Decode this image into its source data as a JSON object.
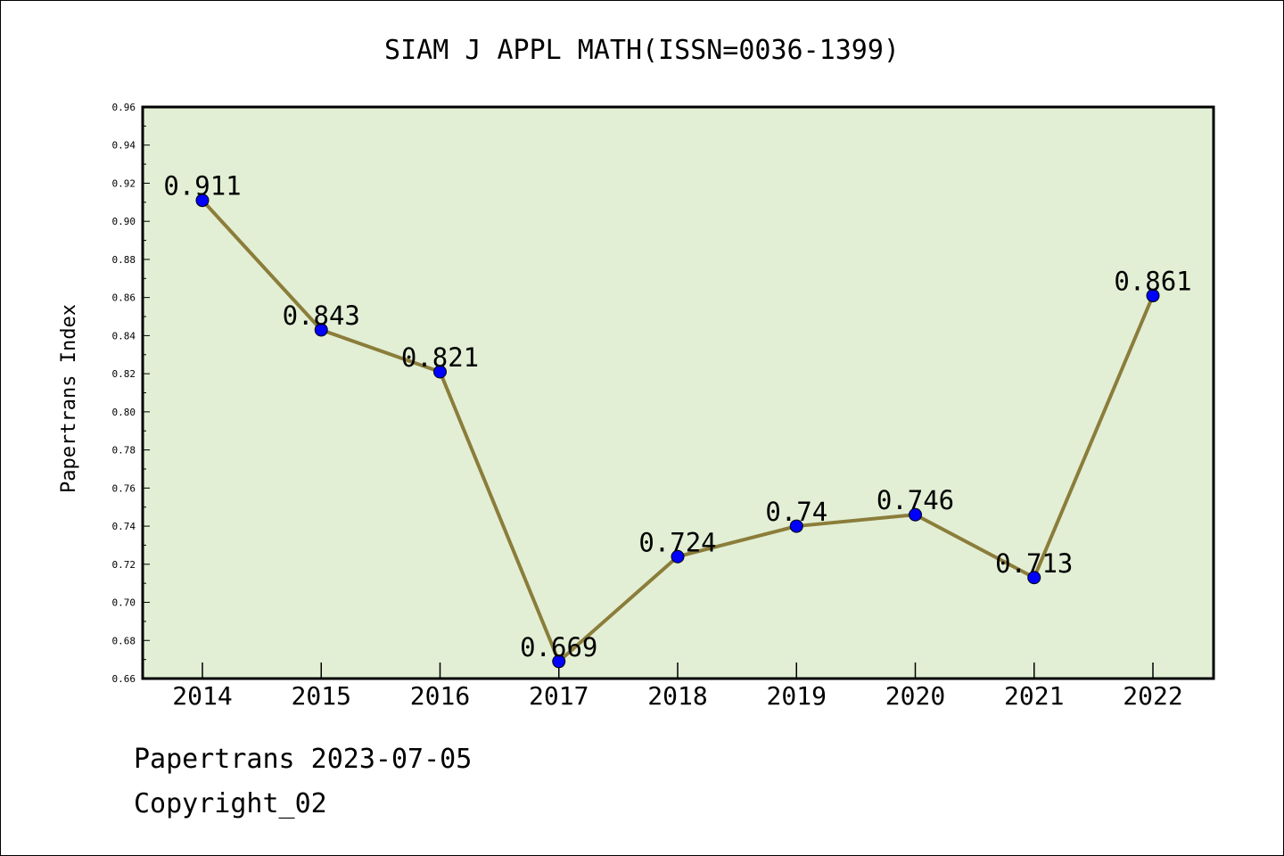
{
  "chart_data": {
    "type": "line",
    "title": "SIAM J APPL MATH(ISSN=0036-1399)",
    "xlabel": "",
    "ylabel": "Papertrans Index",
    "categories": [
      "2014",
      "2015",
      "2016",
      "2017",
      "2018",
      "2019",
      "2020",
      "2021",
      "2022"
    ],
    "values": [
      0.911,
      0.843,
      0.821,
      0.669,
      0.724,
      0.74,
      0.746,
      0.713,
      0.861
    ],
    "value_labels": [
      "0.911",
      "0.843",
      "0.821",
      "0.669",
      "0.724",
      "0.74",
      "0.746",
      "0.713",
      "0.861"
    ],
    "ylim": [
      0.66,
      0.96
    ],
    "yticks": [
      0.66,
      0.68,
      0.7,
      0.72,
      0.74,
      0.76,
      0.78,
      0.8,
      0.82,
      0.84,
      0.86,
      0.88,
      0.9,
      0.92,
      0.94,
      0.96
    ],
    "ytick_labels": [
      "0.66",
      "0.68",
      "0.70",
      "0.72",
      "0.74",
      "0.76",
      "0.78",
      "0.80",
      "0.82",
      "0.84",
      "0.86",
      "0.88",
      "0.90",
      "0.92",
      "0.94",
      "0.96"
    ],
    "grid": false,
    "legend": "none",
    "colors": {
      "plot_background": "#e2efd5",
      "line": "#8b7d3a",
      "marker": "#0000ff"
    }
  },
  "footer": {
    "date_line": "Papertrans 2023-07-05",
    "copyright": "Copyright_02"
  }
}
